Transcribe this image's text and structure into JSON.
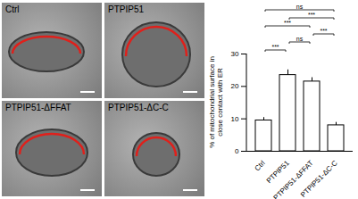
{
  "chart_data": {
    "type": "bar",
    "categories": [
      "Ctrl",
      "PTPIP51",
      "PTPIP51-ΔFFAT",
      "PTPIP51-ΔC-C"
    ],
    "values": [
      9.5,
      23.5,
      21.5,
      8
    ],
    "errors": [
      0.9,
      1.6,
      1.2,
      0.9
    ],
    "color": "#ffffff",
    "ylabel": "% of mitochondrial surface in close contact with ER",
    "ylim": [
      0,
      30
    ],
    "yticks": [
      0,
      10,
      20,
      30
    ],
    "comparisons": [
      {
        "from": "Ctrl",
        "to": "PTPIP51",
        "label": "***"
      },
      {
        "from": "PTPIP51",
        "to": "PTPIP51-ΔFFAT",
        "label": "ns"
      },
      {
        "from": "PTPIP51-ΔFFAT",
        "to": "PTPIP51-ΔC-C",
        "label": "***"
      },
      {
        "from": "Ctrl",
        "to": "PTPIP51-ΔFFAT",
        "label": "***"
      },
      {
        "from": "PTPIP51",
        "to": "PTPIP51-ΔC-C",
        "label": "***"
      },
      {
        "from": "Ctrl",
        "to": "PTPIP51-ΔC-C",
        "label": "ns"
      }
    ]
  },
  "micrographs": {
    "labels": [
      "Ctrl",
      "PTPIP51",
      "PTPIP51-ΔFFAT",
      "PTPIP51-ΔC-C"
    ]
  }
}
